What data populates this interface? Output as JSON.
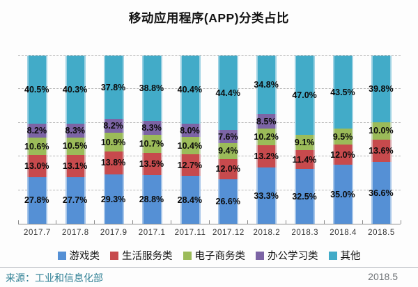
{
  "chart_data": {
    "type": "bar",
    "variant": "stacked-100-percent",
    "title": "移动应用程序(APP)分类占比",
    "categories": [
      "2017.7",
      "2017.8",
      "2017.9",
      "2017.1",
      "2017.11",
      "2017.12",
      "2018.2",
      "2018.3",
      "2018.4",
      "2018.5"
    ],
    "series": [
      {
        "key": "games",
        "name": "游戏类",
        "color": "#5590D5",
        "values": [
          27.8,
          27.7,
          29.3,
          28.8,
          28.4,
          26.6,
          33.3,
          32.5,
          35.0,
          36.6
        ]
      },
      {
        "key": "life-service",
        "name": "生活服务类",
        "color": "#C74A4D",
        "values": [
          13.0,
          13.1,
          13.8,
          13.5,
          12.7,
          12.0,
          13.2,
          11.4,
          12.0,
          13.6
        ]
      },
      {
        "key": "e-commerce",
        "name": "电子商务类",
        "color": "#9BBB59",
        "values": [
          10.6,
          10.5,
          10.9,
          10.7,
          10.4,
          9.4,
          10.2,
          9.1,
          9.5,
          10.0
        ]
      },
      {
        "key": "office-study",
        "name": "办公学习类",
        "color": "#7C64A5",
        "values": [
          8.2,
          8.3,
          8.2,
          8.3,
          8.0,
          7.6,
          8.5,
          0,
          0,
          0
        ]
      },
      {
        "key": "other",
        "name": "其他",
        "color": "#42ABC8",
        "values": [
          40.5,
          40.3,
          37.8,
          38.8,
          40.4,
          44.4,
          34.8,
          47.0,
          43.5,
          39.8
        ]
      }
    ],
    "value_suffix": "%",
    "xlabel": "",
    "ylabel": "",
    "ylim": [
      0,
      100
    ],
    "y_axis_tick_labels": "none",
    "gridline_interval": 20,
    "gridline_style": "dashed",
    "legend_position": "bottom",
    "data_labels": "inside-segment-center"
  },
  "footer": {
    "source": "来源：工业和信息化部",
    "date": "2018.5"
  }
}
